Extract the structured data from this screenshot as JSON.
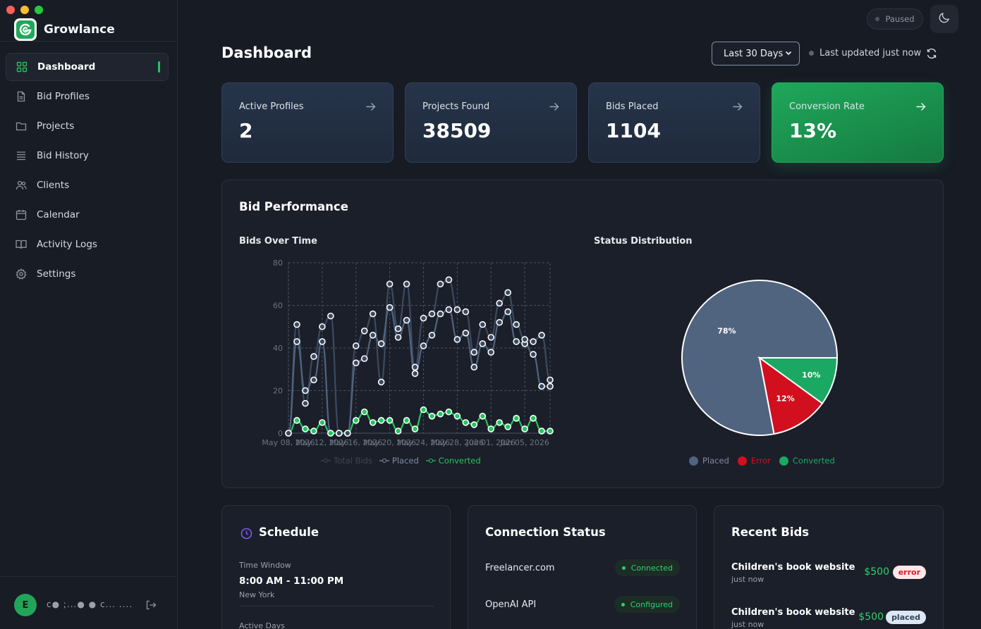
{
  "app": {
    "name": "Growlance"
  },
  "sidebar": {
    "items": [
      {
        "label": "Dashboard",
        "icon": "grid-icon",
        "active": true
      },
      {
        "label": "Bid Profiles",
        "icon": "file-icon"
      },
      {
        "label": "Projects",
        "icon": "folder-icon"
      },
      {
        "label": "Bid History",
        "icon": "list-icon"
      },
      {
        "label": "Clients",
        "icon": "users-icon"
      },
      {
        "label": "Calendar",
        "icon": "calendar-icon"
      },
      {
        "label": "Activity Logs",
        "icon": "book-icon"
      },
      {
        "label": "Settings",
        "icon": "gear-icon"
      }
    ],
    "user": {
      "initial": "E",
      "name": "c● ;...● ● c... ...."
    }
  },
  "topbar": {
    "status": "Paused",
    "theme_icon": "moon-icon"
  },
  "header": {
    "title": "Dashboard",
    "range": "Last 30 Days",
    "updated": "Last updated just now"
  },
  "stats": [
    {
      "label": "Active Profiles",
      "value": "2"
    },
    {
      "label": "Projects Found",
      "value": "38509"
    },
    {
      "label": "Bids Placed",
      "value": "1104"
    },
    {
      "label": "Conversion Rate",
      "value": "13%",
      "accent": "#1fa85a"
    }
  ],
  "bid_performance": {
    "title": "Bid Performance",
    "line_title": "Bids Over Time",
    "pie_title": "Status Distribution"
  },
  "chart_data": [
    {
      "type": "line",
      "title": "Bids Over Time",
      "ylim": [
        0,
        80
      ],
      "y_ticks": [
        0,
        20,
        40,
        60,
        80
      ],
      "x_tick_labels": [
        "May 08, 2026",
        "May 12, 2026",
        "May 16, 2026",
        "May 20, 2026",
        "May 24, 2026",
        "May 28, 2026",
        "Jun 01, 2026",
        "Jun 05, 2026"
      ],
      "grid": true,
      "legend_position": "bottom",
      "series": [
        {
          "name": "Total Bids",
          "color": "#3b4a60",
          "values": [
            0,
            51,
            14,
            36,
            50,
            55,
            0,
            0,
            41,
            48,
            56,
            24,
            70,
            49,
            70,
            31,
            54,
            56,
            70,
            72,
            58,
            57,
            38,
            51,
            45,
            61,
            66,
            51,
            44,
            43,
            46,
            25
          ]
        },
        {
          "name": "Placed",
          "color": "#506480",
          "values": [
            0,
            43,
            20,
            25,
            43,
            0,
            0,
            0,
            33,
            35,
            46,
            42,
            59,
            45,
            53,
            28,
            41,
            46,
            56,
            58,
            44,
            47,
            31,
            42,
            38,
            52,
            57,
            43,
            42,
            37,
            22,
            22
          ]
        },
        {
          "name": "Converted",
          "color": "#22c55e",
          "values": [
            0,
            6,
            2,
            1,
            5,
            0,
            0,
            0,
            6,
            10,
            5,
            6,
            6,
            1,
            6,
            2,
            11,
            8,
            9,
            10,
            8,
            5,
            4,
            8,
            2,
            5,
            3,
            7,
            2,
            7,
            1,
            1
          ]
        }
      ]
    },
    {
      "type": "pie",
      "title": "Status Distribution",
      "legend_position": "bottom",
      "slices": [
        {
          "name": "Placed",
          "value": 78,
          "label": "78%",
          "color": "#506480"
        },
        {
          "name": "Error",
          "value": 12,
          "label": "12%",
          "color": "#d10f1e"
        },
        {
          "name": "Converted",
          "value": 10,
          "label": "10%",
          "color": "#1aa863"
        }
      ]
    }
  ],
  "schedule": {
    "title": "Schedule",
    "time_window_label": "Time Window",
    "time_window": "8:00 AM - 11:00 PM",
    "timezone": "New York",
    "active_days_label": "Active Days"
  },
  "connection": {
    "title": "Connection Status",
    "items": [
      {
        "name": "Freelancer.com",
        "status": "Connected"
      },
      {
        "name": "OpenAI API",
        "status": "Configured"
      }
    ]
  },
  "recent_bids": {
    "title": "Recent Bids",
    "items": [
      {
        "title": "Children's book website",
        "time": "just now",
        "amount": "$500",
        "status": "error"
      },
      {
        "title": "Children's book website",
        "time": "just now",
        "amount": "$500",
        "status": "placed"
      }
    ]
  }
}
